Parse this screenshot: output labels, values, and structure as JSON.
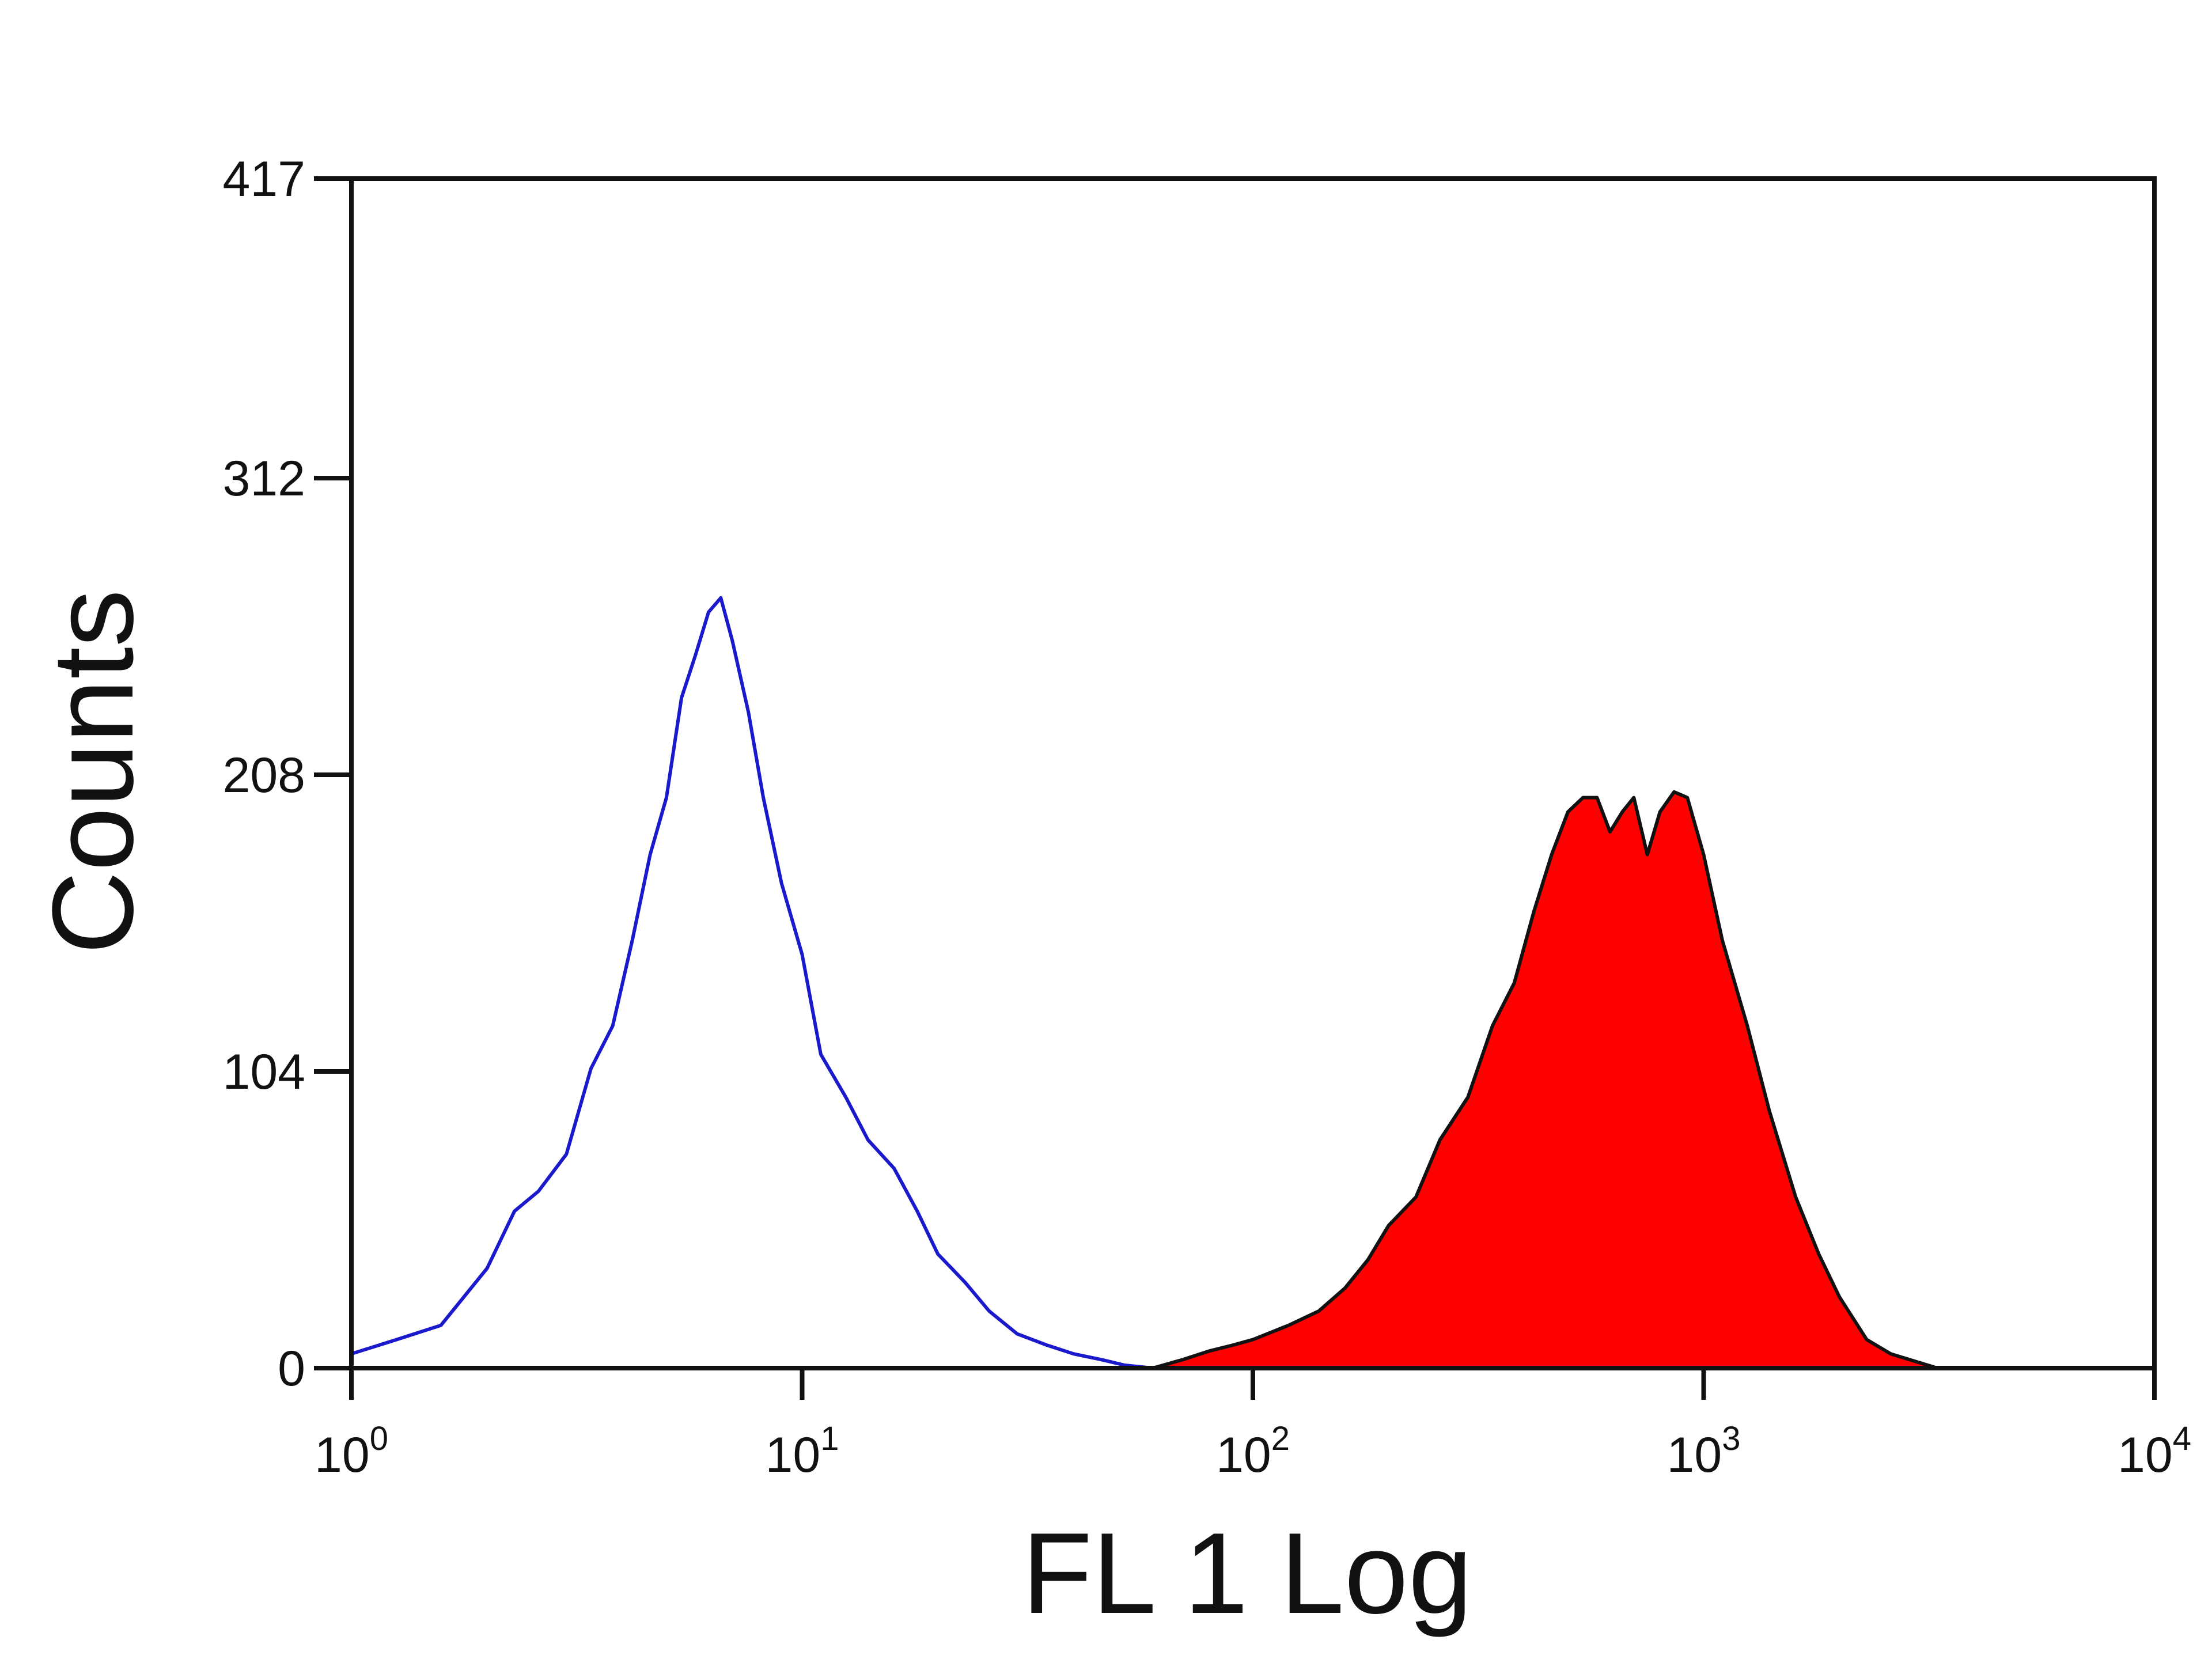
{
  "chart_data": {
    "type": "area",
    "xlabel": "FL 1 Log",
    "ylabel": "Counts",
    "x_scale": "log",
    "xlim": [
      1,
      10000
    ],
    "ylim": [
      0,
      417
    ],
    "x_ticks": [
      {
        "value": 1,
        "base": "10",
        "exp": "0"
      },
      {
        "value": 10,
        "base": "10",
        "exp": "1"
      },
      {
        "value": 100,
        "base": "10",
        "exp": "2"
      },
      {
        "value": 1000,
        "base": "10",
        "exp": "3"
      },
      {
        "value": 10000,
        "base": "10",
        "exp": "4"
      }
    ],
    "y_ticks": [
      0,
      104,
      208,
      312,
      417
    ],
    "grid": false,
    "series": [
      {
        "style": "outline",
        "color": "#1a1acc",
        "x": [
          1,
          1.26,
          1.58,
          2,
          2.3,
          2.6,
          3,
          3.4,
          3.8,
          4.2,
          4.6,
          5,
          5.4,
          5.8,
          6.2,
          6.6,
          7,
          7.6,
          8.2,
          9,
          10,
          11,
          12.5,
          14,
          16,
          18,
          20,
          23,
          26,
          30,
          35,
          40,
          46,
          52,
          60
        ],
        "y": [
          5,
          10,
          15,
          35,
          55,
          62,
          75,
          105,
          120,
          150,
          180,
          200,
          235,
          250,
          265,
          270,
          255,
          230,
          200,
          170,
          145,
          110,
          95,
          80,
          70,
          55,
          40,
          30,
          20,
          12,
          8,
          5,
          3,
          1,
          0
        ]
      },
      {
        "style": "filled",
        "color": "#ff0000",
        "edge_color": "#111111",
        "x": [
          60,
          70,
          80,
          90,
          100,
          120,
          140,
          160,
          180,
          200,
          230,
          260,
          300,
          340,
          380,
          420,
          460,
          500,
          540,
          580,
          620,
          660,
          700,
          750,
          800,
          860,
          920,
          1000,
          1100,
          1250,
          1400,
          1600,
          1800,
          2000,
          2300,
          2600,
          3000,
          3300
        ],
        "y": [
          0,
          3,
          6,
          8,
          10,
          15,
          20,
          28,
          38,
          50,
          60,
          80,
          95,
          120,
          135,
          160,
          180,
          195,
          200,
          200,
          188,
          195,
          200,
          180,
          195,
          202,
          200,
          180,
          150,
          120,
          90,
          60,
          40,
          25,
          10,
          5,
          2,
          0
        ]
      }
    ]
  }
}
